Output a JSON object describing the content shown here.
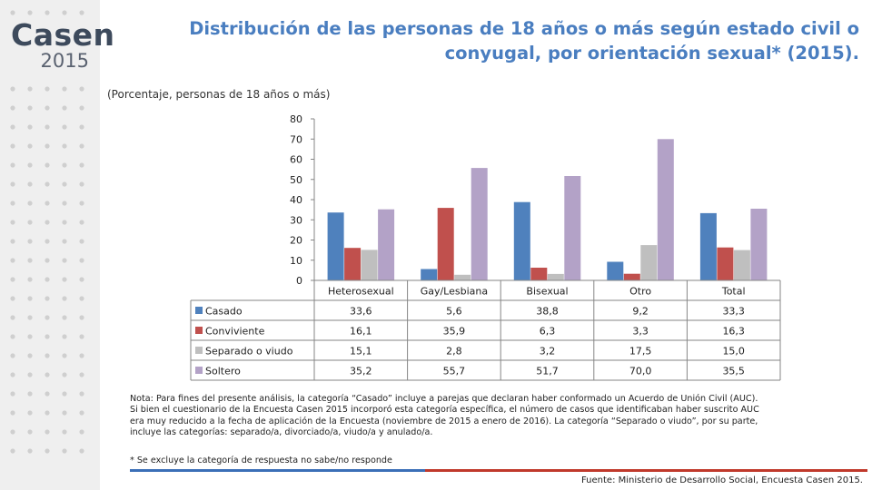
{
  "brand": {
    "name": "Casen",
    "year": "2015"
  },
  "title": "Distribución de las personas de 18 años o más según estado civil o conyugal, por orientación sexual* (2015).",
  "subtitle": "(Porcentaje, personas de 18 años o más)",
  "colors": {
    "title": "#4a7ec0",
    "casado": "#4f81bd",
    "conviviente": "#c0504d",
    "separado": "#bfbfbf",
    "soltero": "#b3a2c7"
  },
  "chart_data": {
    "type": "bar",
    "categories": [
      "Heterosexual",
      "Gay/Lesbiana",
      "Bisexual",
      "Otro",
      "Total"
    ],
    "series": [
      {
        "name": "Casado",
        "values": [
          33.6,
          5.6,
          38.8,
          9.2,
          33.3
        ],
        "labels": [
          "33,6",
          "5,6",
          "38,8",
          "9,2",
          "33,3"
        ],
        "color": "#4f81bd"
      },
      {
        "name": "Conviviente",
        "values": [
          16.1,
          35.9,
          6.3,
          3.3,
          16.3
        ],
        "labels": [
          "16,1",
          "35,9",
          "6,3",
          "3,3",
          "16,3"
        ],
        "color": "#c0504d"
      },
      {
        "name": "Separado o viudo",
        "values": [
          15.1,
          2.8,
          3.2,
          17.5,
          15.0
        ],
        "labels": [
          "15,1",
          "2,8",
          "3,2",
          "17,5",
          "15,0"
        ],
        "color": "#bfbfbf"
      },
      {
        "name": "Soltero",
        "values": [
          35.2,
          55.7,
          51.7,
          70.0,
          35.5
        ],
        "labels": [
          "35,2",
          "55,7",
          "51,7",
          "70,0",
          "35,5"
        ],
        "color": "#b3a2c7"
      }
    ],
    "yticks": [
      0,
      10,
      20,
      30,
      40,
      50,
      60,
      70,
      80
    ],
    "ylim": [
      0,
      80
    ],
    "grid": false,
    "legend": "data-table"
  },
  "notes": {
    "lines": [
      "Nota: Para fines del presente análisis, la categoría “Casado” incluye a parejas que declaran haber conformado un Acuerdo de Unión Civil (AUC).",
      "Si bien el cuestionario de la Encuesta Casen 2015 incorporó esta categoría específica, el número de casos que identificaban haber suscrito AUC",
      "era muy reducido a la fecha de aplicación de la Encuesta (noviembre de 2015 a enero de 2016). La categoría “Separado o viudo”, por su parte,",
      "incluye las categorías: separado/a, divorciado/a, viudo/a y anulado/a."
    ],
    "exclusion": "* Se excluye la categoría de respuesta no sabe/no responde"
  },
  "source": "Fuente: Ministerio de Desarrollo Social, Encuesta Casen 2015."
}
